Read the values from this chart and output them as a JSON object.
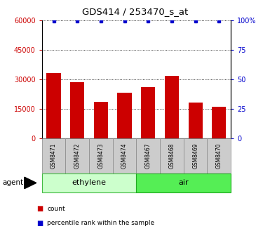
{
  "title": "GDS414 / 253470_s_at",
  "categories": [
    "GSM8471",
    "GSM8472",
    "GSM8473",
    "GSM8474",
    "GSM8467",
    "GSM8468",
    "GSM8469",
    "GSM8470"
  ],
  "counts": [
    33000,
    28500,
    18500,
    23000,
    26000,
    31500,
    18000,
    16000
  ],
  "percentiles": [
    99,
    99,
    99,
    99,
    99,
    99,
    99,
    99
  ],
  "bar_color": "#cc0000",
  "dot_color": "#0000cc",
  "ylim_left": [
    0,
    60000
  ],
  "ylim_right": [
    0,
    100
  ],
  "yticks_left": [
    0,
    15000,
    30000,
    45000,
    60000
  ],
  "ytick_labels_left": [
    "0",
    "15000",
    "30000",
    "45000",
    "60000"
  ],
  "yticks_right": [
    0,
    25,
    50,
    75,
    100
  ],
  "ytick_labels_right": [
    "0",
    "25",
    "50",
    "75",
    "100%"
  ],
  "groups": [
    {
      "label": "ethylene",
      "indices": [
        0,
        1,
        2,
        3
      ],
      "color": "#ccffcc",
      "edge_color": "#44bb44"
    },
    {
      "label": "air",
      "indices": [
        4,
        5,
        6,
        7
      ],
      "color": "#55ee55",
      "edge_color": "#22aa22"
    }
  ],
  "agent_label": "agent",
  "legend_items": [
    {
      "label": "count",
      "color": "#cc0000"
    },
    {
      "label": "percentile rank within the sample",
      "color": "#0000cc"
    }
  ],
  "tick_label_color_left": "#cc0000",
  "tick_label_color_right": "#0000cc",
  "xlabel_box_color": "#cccccc",
  "xlabel_box_edge": "#888888"
}
